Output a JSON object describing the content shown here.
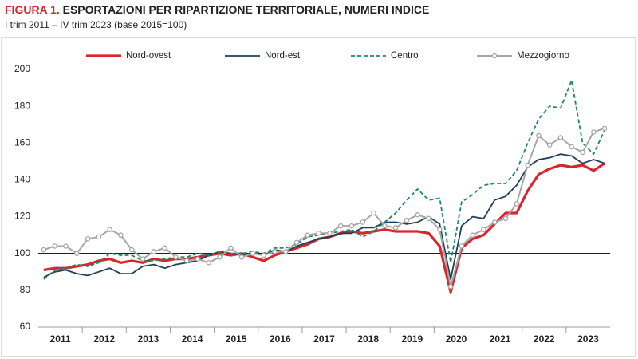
{
  "chart_data": {
    "type": "line",
    "title_prefix": "FIGURA 1.",
    "title": "ESPORTAZIONI PER RIPARTIZIONE TERRITORIALE, NUMERI INDICE",
    "subtitle": "I trim 2011 – IV trim 2023 (base 2015=100)",
    "categories": [
      "2011",
      null,
      null,
      null,
      "2012",
      null,
      null,
      null,
      "2013",
      null,
      null,
      null,
      "2014",
      null,
      null,
      null,
      "2015",
      null,
      null,
      null,
      "2016",
      null,
      null,
      null,
      "2017",
      null,
      null,
      null,
      "2018",
      null,
      null,
      null,
      "2019",
      null,
      null,
      null,
      "2020",
      null,
      null,
      null,
      "2021",
      null,
      null,
      null,
      "2022",
      null,
      null,
      null,
      "2023",
      null,
      null,
      null
    ],
    "series": [
      {
        "name": "Nord-ovest",
        "color": "#d7272d",
        "width": 3.2,
        "dash": false,
        "marker": false,
        "values": [
          91,
          92,
          92,
          93,
          94,
          96,
          97,
          95,
          96,
          95,
          97,
          96,
          97,
          97,
          98,
          99,
          100,
          99,
          100,
          98,
          96,
          99,
          101,
          103,
          105,
          108,
          109,
          111,
          112,
          111,
          112,
          113,
          112,
          112,
          112,
          111,
          104,
          79,
          103,
          108,
          110,
          116,
          122,
          122,
          134,
          143,
          146,
          148,
          147,
          148,
          145,
          149
        ]
      },
      {
        "name": "Nord-est",
        "color": "#1d3f5e",
        "width": 1.8,
        "dash": false,
        "marker": false,
        "values": [
          87,
          90,
          91,
          89,
          88,
          90,
          92,
          89,
          89,
          93,
          94,
          92,
          94,
          95,
          96,
          99,
          101,
          100,
          99,
          100,
          99,
          102,
          101,
          104,
          106,
          108,
          109,
          111,
          111,
          114,
          114,
          117,
          117,
          116,
          117,
          120,
          116,
          86,
          115,
          120,
          119,
          129,
          131,
          137,
          147,
          151,
          152,
          154,
          153,
          149,
          151,
          149
        ]
      },
      {
        "name": "Centro",
        "color": "#1f8a5e",
        "width": 1.8,
        "dash": true,
        "marker": false,
        "values": [
          86,
          91,
          92,
          94,
          93,
          95,
          100,
          99,
          99,
          96,
          96,
          97,
          98,
          98,
          100,
          99,
          101,
          100,
          100,
          101,
          100,
          103,
          103,
          105,
          109,
          110,
          111,
          112,
          113,
          109,
          112,
          117,
          122,
          129,
          135,
          129,
          130,
          95,
          128,
          132,
          137,
          138,
          138,
          145,
          160,
          173,
          180,
          179,
          194,
          160,
          154,
          167
        ]
      },
      {
        "name": "Mezzogiorno",
        "color": "#a6a6a6",
        "width": 2,
        "dash": false,
        "marker": true,
        "values": [
          102,
          104,
          104,
          100,
          108,
          109,
          113,
          110,
          102,
          97,
          101,
          103,
          98,
          96,
          97,
          95,
          98,
          103,
          98,
          100,
          99,
          101,
          101,
          106,
          110,
          111,
          111,
          115,
          115,
          117,
          122,
          115,
          114,
          118,
          121,
          119,
          113,
          82,
          104,
          110,
          113,
          117,
          119,
          127,
          148,
          164,
          159,
          163,
          158,
          155,
          166,
          168
        ]
      }
    ],
    "ylim": [
      60,
      200
    ],
    "yticks": [
      60,
      80,
      100,
      120,
      140,
      160,
      180,
      200
    ],
    "reference_line": 100,
    "grid": false
  }
}
